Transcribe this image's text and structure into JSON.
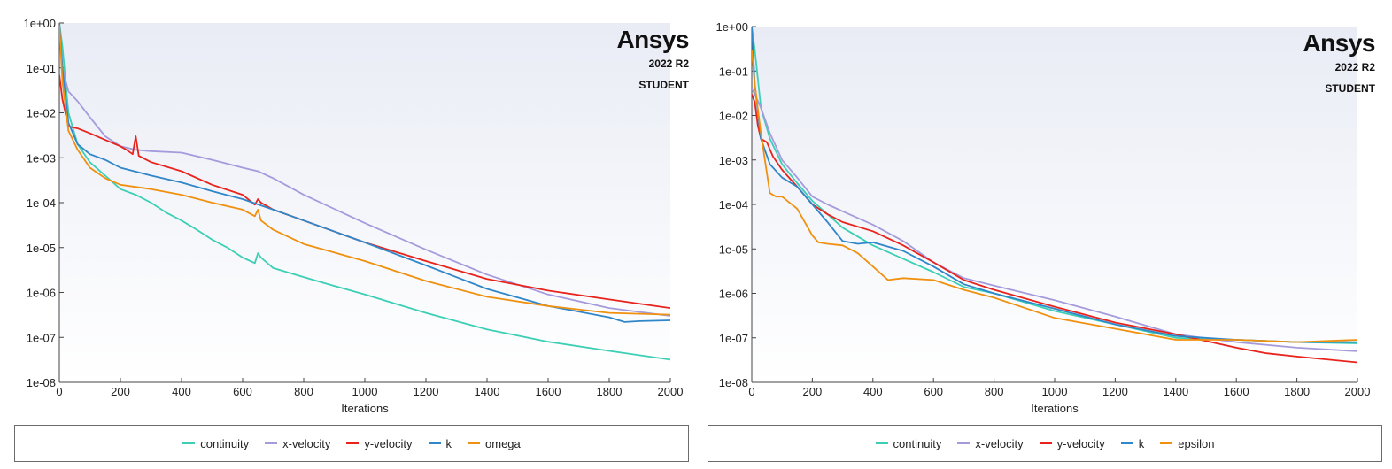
{
  "logo": {
    "brand": "Ansys",
    "version": "2022 R2",
    "edition": "STUDENT"
  },
  "colors": {
    "continuity": "#3ccfb5",
    "x-velocity": "#a59bdc",
    "y-velocity": "#e8231c",
    "k": "#2f86c8",
    "omega": "#f0900f",
    "epsilon": "#f0900f",
    "plot_bg_top": "#e9ecf5",
    "plot_bg_bottom": "#ffffff"
  },
  "chart_data": [
    {
      "type": "line",
      "title": "",
      "xlabel": "Iterations",
      "ylabel": "",
      "yscale": "log",
      "xlim": [
        0,
        2000
      ],
      "ylim": [
        1e-08,
        1
      ],
      "xticks": [
        "0",
        "200",
        "400",
        "600",
        "800",
        "1000",
        "1200",
        "1400",
        "1600",
        "1800",
        "2000"
      ],
      "yticks": [
        "1e+00",
        "1e-01",
        "1e-02",
        "1e-03",
        "1e-04",
        "1e-05",
        "1e-06",
        "1e-07",
        "1e-08"
      ],
      "legend": "bottom",
      "series": [
        {
          "name": "continuity",
          "x": [
            0,
            10,
            30,
            60,
            100,
            150,
            200,
            250,
            300,
            350,
            400,
            450,
            500,
            550,
            600,
            640,
            650,
            660,
            700,
            800,
            900,
            1000,
            1200,
            1400,
            1600,
            1800,
            2000
          ],
          "y": [
            1,
            0.3,
            0.01,
            0.002,
            0.0008,
            0.0004,
            0.0002,
            0.00015,
            0.0001,
            6e-05,
            4e-05,
            2.5e-05,
            1.5e-05,
            1e-05,
            6e-06,
            4.5e-06,
            7.5e-06,
            6e-06,
            3.5e-06,
            2.2e-06,
            1.4e-06,
            9e-07,
            3.5e-07,
            1.5e-07,
            8e-08,
            5e-08,
            3.2e-08
          ]
        },
        {
          "name": "x-velocity",
          "x": [
            0,
            10,
            30,
            60,
            100,
            150,
            200,
            250,
            300,
            400,
            500,
            600,
            650,
            700,
            800,
            1000,
            1200,
            1400,
            1600,
            1800,
            2000
          ],
          "y": [
            1,
            0.1,
            0.03,
            0.018,
            0.008,
            0.003,
            0.0018,
            0.0015,
            0.0014,
            0.0013,
            0.0009,
            0.0006,
            0.0005,
            0.00035,
            0.00015,
            3.5e-05,
            9e-06,
            2.5e-06,
            9e-07,
            4.5e-07,
            3e-07
          ]
        },
        {
          "name": "y-velocity",
          "x": [
            0,
            10,
            30,
            60,
            100,
            150,
            200,
            220,
            240,
            250,
            260,
            300,
            400,
            500,
            600,
            640,
            650,
            660,
            700,
            800,
            1000,
            1200,
            1400,
            1600,
            1800,
            2000
          ],
          "y": [
            0.07,
            0.02,
            0.005,
            0.0045,
            0.0035,
            0.0025,
            0.0018,
            0.0015,
            0.0012,
            0.003,
            0.0011,
            0.0008,
            0.0005,
            0.00025,
            0.00015,
            9e-05,
            0.00012,
            0.0001,
            7e-05,
            4e-05,
            1.3e-05,
            5e-06,
            2e-06,
            1.1e-06,
            7e-07,
            4.5e-07
          ]
        },
        {
          "name": "k",
          "x": [
            0,
            10,
            30,
            60,
            100,
            150,
            200,
            300,
            400,
            500,
            600,
            700,
            800,
            1000,
            1200,
            1400,
            1600,
            1800,
            1850,
            1900,
            2000
          ],
          "y": [
            1,
            0.1,
            0.006,
            0.002,
            0.0012,
            0.0009,
            0.0006,
            0.0004,
            0.00028,
            0.00018,
            0.00012,
            7e-05,
            4e-05,
            1.3e-05,
            4e-06,
            1.2e-06,
            5e-07,
            2.8e-07,
            2.2e-07,
            2.3e-07,
            2.4e-07
          ]
        },
        {
          "name": "omega",
          "x": [
            0,
            10,
            30,
            60,
            100,
            150,
            200,
            300,
            400,
            500,
            600,
            640,
            650,
            660,
            700,
            800,
            1000,
            1200,
            1400,
            1600,
            1800,
            2000
          ],
          "y": [
            0.9,
            0.05,
            0.004,
            0.0015,
            0.0006,
            0.00035,
            0.00025,
            0.0002,
            0.00015,
            0.0001,
            7e-05,
            5e-05,
            7e-05,
            4e-05,
            2.5e-05,
            1.2e-05,
            5e-06,
            1.8e-06,
            8e-07,
            5e-07,
            3.5e-07,
            3.2e-07
          ]
        }
      ]
    },
    {
      "type": "line",
      "title": "",
      "xlabel": "Iterations",
      "ylabel": "",
      "yscale": "log",
      "xlim": [
        0,
        2000
      ],
      "ylim": [
        1e-08,
        1
      ],
      "xticks": [
        "0",
        "200",
        "400",
        "600",
        "800",
        "1000",
        "1200",
        "1400",
        "1600",
        "1800",
        "2000"
      ],
      "yticks": [
        "1e+00",
        "1e-01",
        "1e-02",
        "1e-03",
        "1e-04",
        "1e-05",
        "1e-06",
        "1e-07",
        "1e-08"
      ],
      "legend": "bottom",
      "series": [
        {
          "name": "continuity",
          "x": [
            0,
            10,
            30,
            60,
            100,
            150,
            200,
            250,
            300,
            400,
            500,
            600,
            700,
            800,
            1000,
            1200,
            1400,
            1600,
            1800,
            2000
          ],
          "y": [
            1,
            0.3,
            0.015,
            0.003,
            0.0008,
            0.0003,
            0.00012,
            6e-05,
            3e-05,
            1.2e-05,
            6e-06,
            3e-06,
            1.4e-06,
            1e-06,
            4e-07,
            2e-07,
            1e-07,
            9e-08,
            8e-08,
            7.5e-08
          ]
        },
        {
          "name": "x-velocity",
          "x": [
            0,
            10,
            30,
            60,
            100,
            150,
            200,
            250,
            300,
            400,
            500,
            600,
            700,
            800,
            1000,
            1200,
            1400,
            1600,
            1800,
            2000
          ],
          "y": [
            0.04,
            0.03,
            0.015,
            0.004,
            0.001,
            0.0004,
            0.00015,
            0.0001,
            7e-05,
            3.5e-05,
            1.5e-05,
            5e-06,
            2.2e-06,
            1.5e-06,
            7e-07,
            3e-07,
            1.2e-07,
            8e-08,
            6e-08,
            5e-08
          ]
        },
        {
          "name": "y-velocity",
          "x": [
            0,
            10,
            20,
            30,
            50,
            70,
            100,
            150,
            200,
            250,
            300,
            400,
            500,
            600,
            700,
            800,
            1000,
            1200,
            1400,
            1600,
            1700,
            1800,
            2000
          ],
          "y": [
            0.03,
            0.02,
            0.006,
            0.003,
            0.0025,
            0.0012,
            0.0006,
            0.00025,
            0.0001,
            6e-05,
            4e-05,
            2.5e-05,
            1.2e-05,
            5e-06,
            2e-06,
            1.2e-06,
            5e-07,
            2.2e-07,
            1.2e-07,
            6e-08,
            4.5e-08,
            3.8e-08,
            2.8e-08
          ]
        },
        {
          "name": "k",
          "x": [
            0,
            10,
            30,
            60,
            100,
            150,
            200,
            250,
            300,
            350,
            400,
            500,
            600,
            700,
            800,
            1000,
            1200,
            1400,
            1600,
            1800,
            2000
          ],
          "y": [
            1,
            0.05,
            0.003,
            0.0008,
            0.0004,
            0.00025,
            0.0001,
            4e-05,
            1.5e-05,
            1.3e-05,
            1.4e-05,
            9e-06,
            4e-06,
            1.6e-06,
            1e-06,
            4.5e-07,
            2e-07,
            1.1e-07,
            9e-08,
            8e-08,
            8e-08
          ]
        },
        {
          "name": "epsilon",
          "x": [
            0,
            10,
            30,
            50,
            60,
            80,
            100,
            150,
            200,
            220,
            250,
            300,
            350,
            400,
            450,
            500,
            600,
            700,
            800,
            1000,
            1200,
            1400,
            1600,
            1800,
            2000
          ],
          "y": [
            0.3,
            0.05,
            0.004,
            0.0005,
            0.00018,
            0.00015,
            0.00015,
            8e-05,
            2e-05,
            1.4e-05,
            1.3e-05,
            1.2e-05,
            8e-06,
            4e-06,
            2e-06,
            2.2e-06,
            2e-06,
            1.2e-06,
            8e-07,
            2.8e-07,
            1.6e-07,
            9e-08,
            9e-08,
            8e-08,
            9e-08
          ]
        }
      ]
    }
  ]
}
